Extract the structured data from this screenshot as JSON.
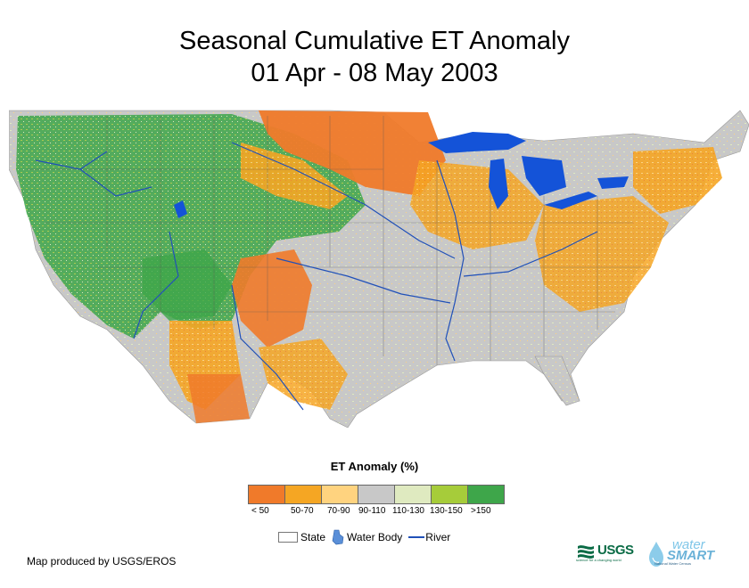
{
  "title": {
    "line1": "Seasonal Cumulative ET Anomaly",
    "line2": "01 Apr - 08 May 2003"
  },
  "legend": {
    "title": "ET Anomaly (%)",
    "classes": [
      {
        "label": "< 50",
        "color": "#f07a2a"
      },
      {
        "label": "50-70",
        "color": "#f5a623"
      },
      {
        "label": "70-90",
        "color": "#ffd37f"
      },
      {
        "label": "90-110",
        "color": "#c8c8c8"
      },
      {
        "label": "110-130",
        "color": "#dfeac0"
      },
      {
        "label": "130-150",
        "color": "#a6cc3a"
      },
      {
        "label": ">150",
        "color": "#3ea64a"
      }
    ]
  },
  "features": {
    "state": "State",
    "water_body": "Water Body",
    "river": "River",
    "water_color": "#1453d8",
    "river_color": "#2050b8"
  },
  "credit": "Map produced by USGS/EROS",
  "logos": {
    "usgs": "USGS",
    "usgs_tagline": "science for a changing world",
    "watersmart_top": "water",
    "watersmart_main": "SMART",
    "watersmart_tagline": "National Water Census"
  }
}
